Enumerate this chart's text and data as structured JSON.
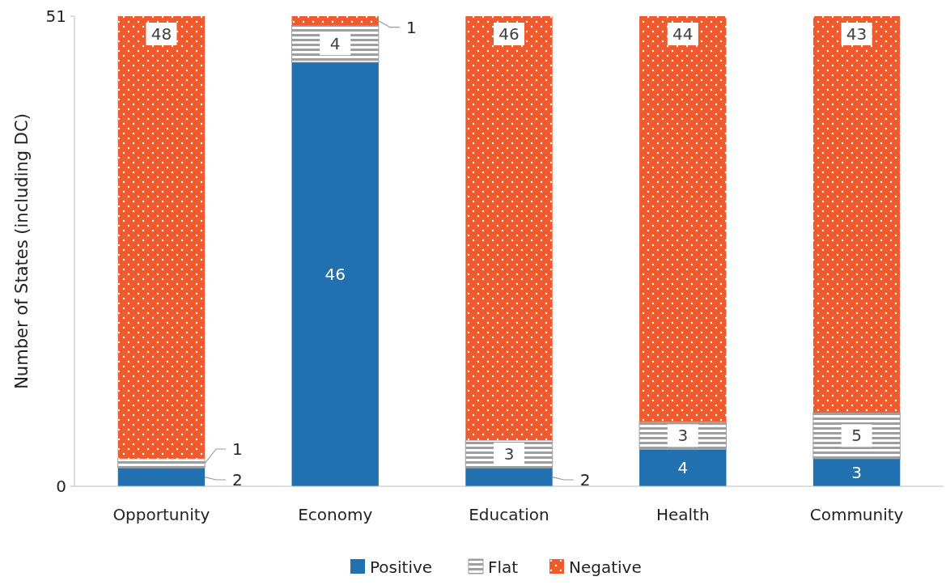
{
  "chart_data": {
    "type": "bar",
    "stacked": true,
    "ylabel": "Number of States (including DC)",
    "categories": [
      "Opportunity",
      "Economy",
      "Education",
      "Health",
      "Community"
    ],
    "series": [
      {
        "name": "Positive",
        "color": "#2171b0",
        "values": [
          2,
          46,
          2,
          4,
          3
        ]
      },
      {
        "name": "Flat",
        "color": "#9e9e9e",
        "values": [
          1,
          4,
          3,
          3,
          5
        ]
      },
      {
        "name": "Negative",
        "color": "#f05a2c",
        "values": [
          48,
          1,
          46,
          44,
          43
        ]
      }
    ],
    "ylim": [
      0,
      51
    ],
    "yticks": [
      0,
      51
    ],
    "data_labels": true,
    "legend": "bottom",
    "grid": false
  }
}
